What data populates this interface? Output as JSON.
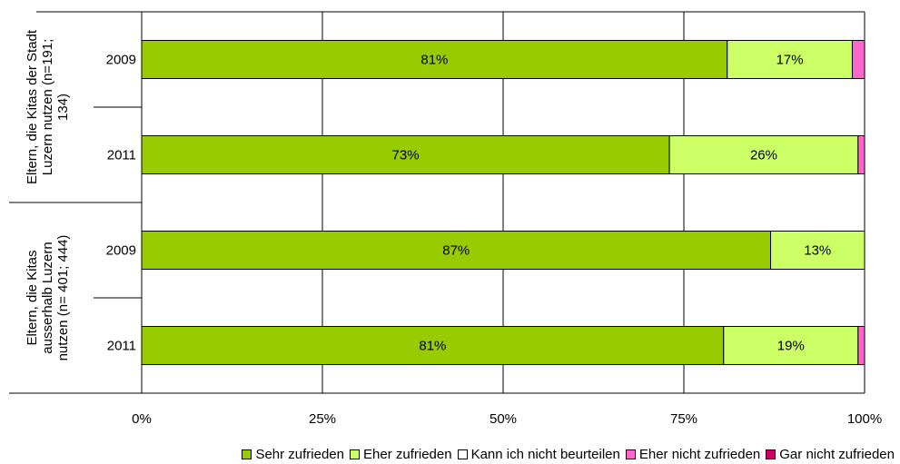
{
  "chart_data": {
    "type": "bar",
    "orientation": "horizontal",
    "stacked": true,
    "percent_stacked": true,
    "groups": [
      {
        "label": "Eltern, die Kitas der Stadt Luzern nutzen (n=191; 134)",
        "lines": [
          "Eltern, die Kitas der Stadt",
          "Luzern nutzen (n=191;",
          "134)"
        ]
      },
      {
        "label": "Eltern, die Kitas ausserhalb Luzern nutzen (n= 401; 444)",
        "lines": [
          "Eltern, die Kitas",
          "ausserhalb Luzern",
          "nutzen (n= 401; 444)"
        ]
      }
    ],
    "categories": [
      "2009",
      "2011",
      "2009",
      "2011"
    ],
    "category_group": [
      0,
      0,
      1,
      1
    ],
    "series": [
      {
        "name": "Sehr zufrieden",
        "color": "#99cc00",
        "values": [
          81,
          73,
          87,
          80.5
        ],
        "labels": [
          "81%",
          "73%",
          "87%",
          "81%"
        ]
      },
      {
        "name": "Eher zufrieden",
        "color": "#ccff66",
        "values": [
          17.3,
          26.1,
          13,
          18.6
        ],
        "labels": [
          "17%",
          "26%",
          "13%",
          "19%"
        ]
      },
      {
        "name": "Kann ich nicht beurteilen",
        "color": "#ffffff",
        "values": [
          0,
          0,
          0,
          0
        ],
        "labels": [
          "",
          "",
          "",
          ""
        ]
      },
      {
        "name": "Eher nicht zufrieden",
        "color": "#ff66cc",
        "values": [
          1.7,
          0.9,
          0,
          0.9
        ],
        "labels": [
          "",
          "",
          "",
          ""
        ]
      },
      {
        "name": "Gar nicht zufrieden",
        "color": "#cc0066",
        "values": [
          0,
          0,
          0,
          0
        ],
        "labels": [
          "",
          "",
          "",
          ""
        ]
      }
    ],
    "x_ticks": [
      "0%",
      "25%",
      "50%",
      "75%",
      "100%"
    ],
    "xlim": [
      0,
      100
    ],
    "grid": true,
    "legend_position": "bottom-right"
  }
}
